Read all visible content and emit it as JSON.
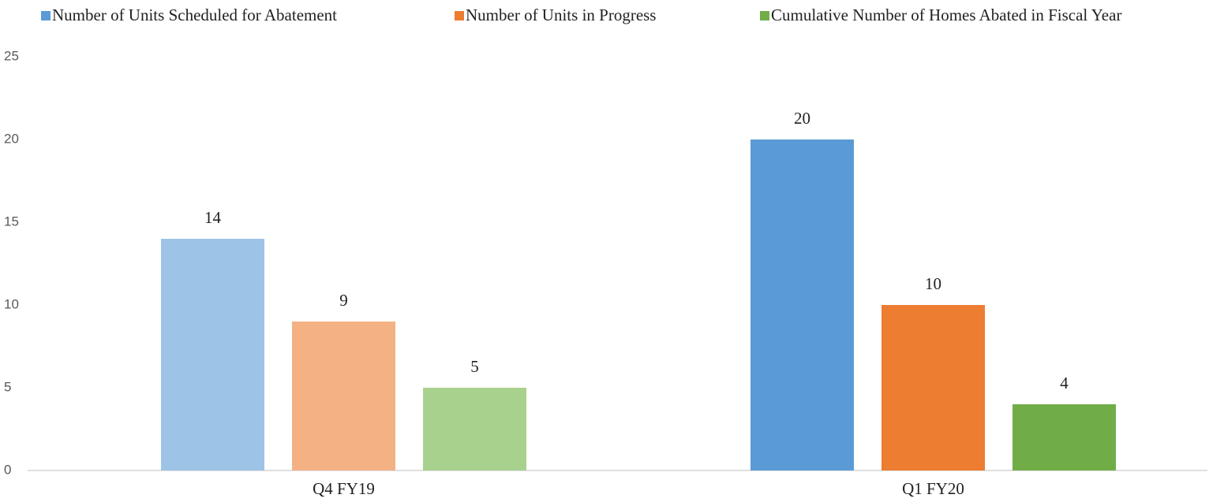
{
  "chart_data": {
    "type": "bar",
    "categories": [
      "Q4 FY19",
      "Q1 FY20"
    ],
    "series": [
      {
        "name": "Number of Units Scheduled for Abatement",
        "color": "#5b9bd5",
        "colors": [
          "#9dc3e6",
          "#5b9bd5"
        ],
        "values": [
          14,
          20
        ]
      },
      {
        "name": "Number of Units in Progress",
        "color": "#ed7d31",
        "colors": [
          "#f4b183",
          "#ed7d31"
        ],
        "values": [
          9,
          10
        ]
      },
      {
        "name": "Cumulative Number of Homes Abated in Fiscal Year",
        "color": "#70ad47",
        "colors": [
          "#a9d18e",
          "#70ad47"
        ],
        "values": [
          5,
          4
        ]
      }
    ],
    "ylim": [
      0,
      25
    ],
    "yticks": [
      0,
      5,
      10,
      15,
      20,
      25
    ],
    "grid": false,
    "legend": "top"
  }
}
